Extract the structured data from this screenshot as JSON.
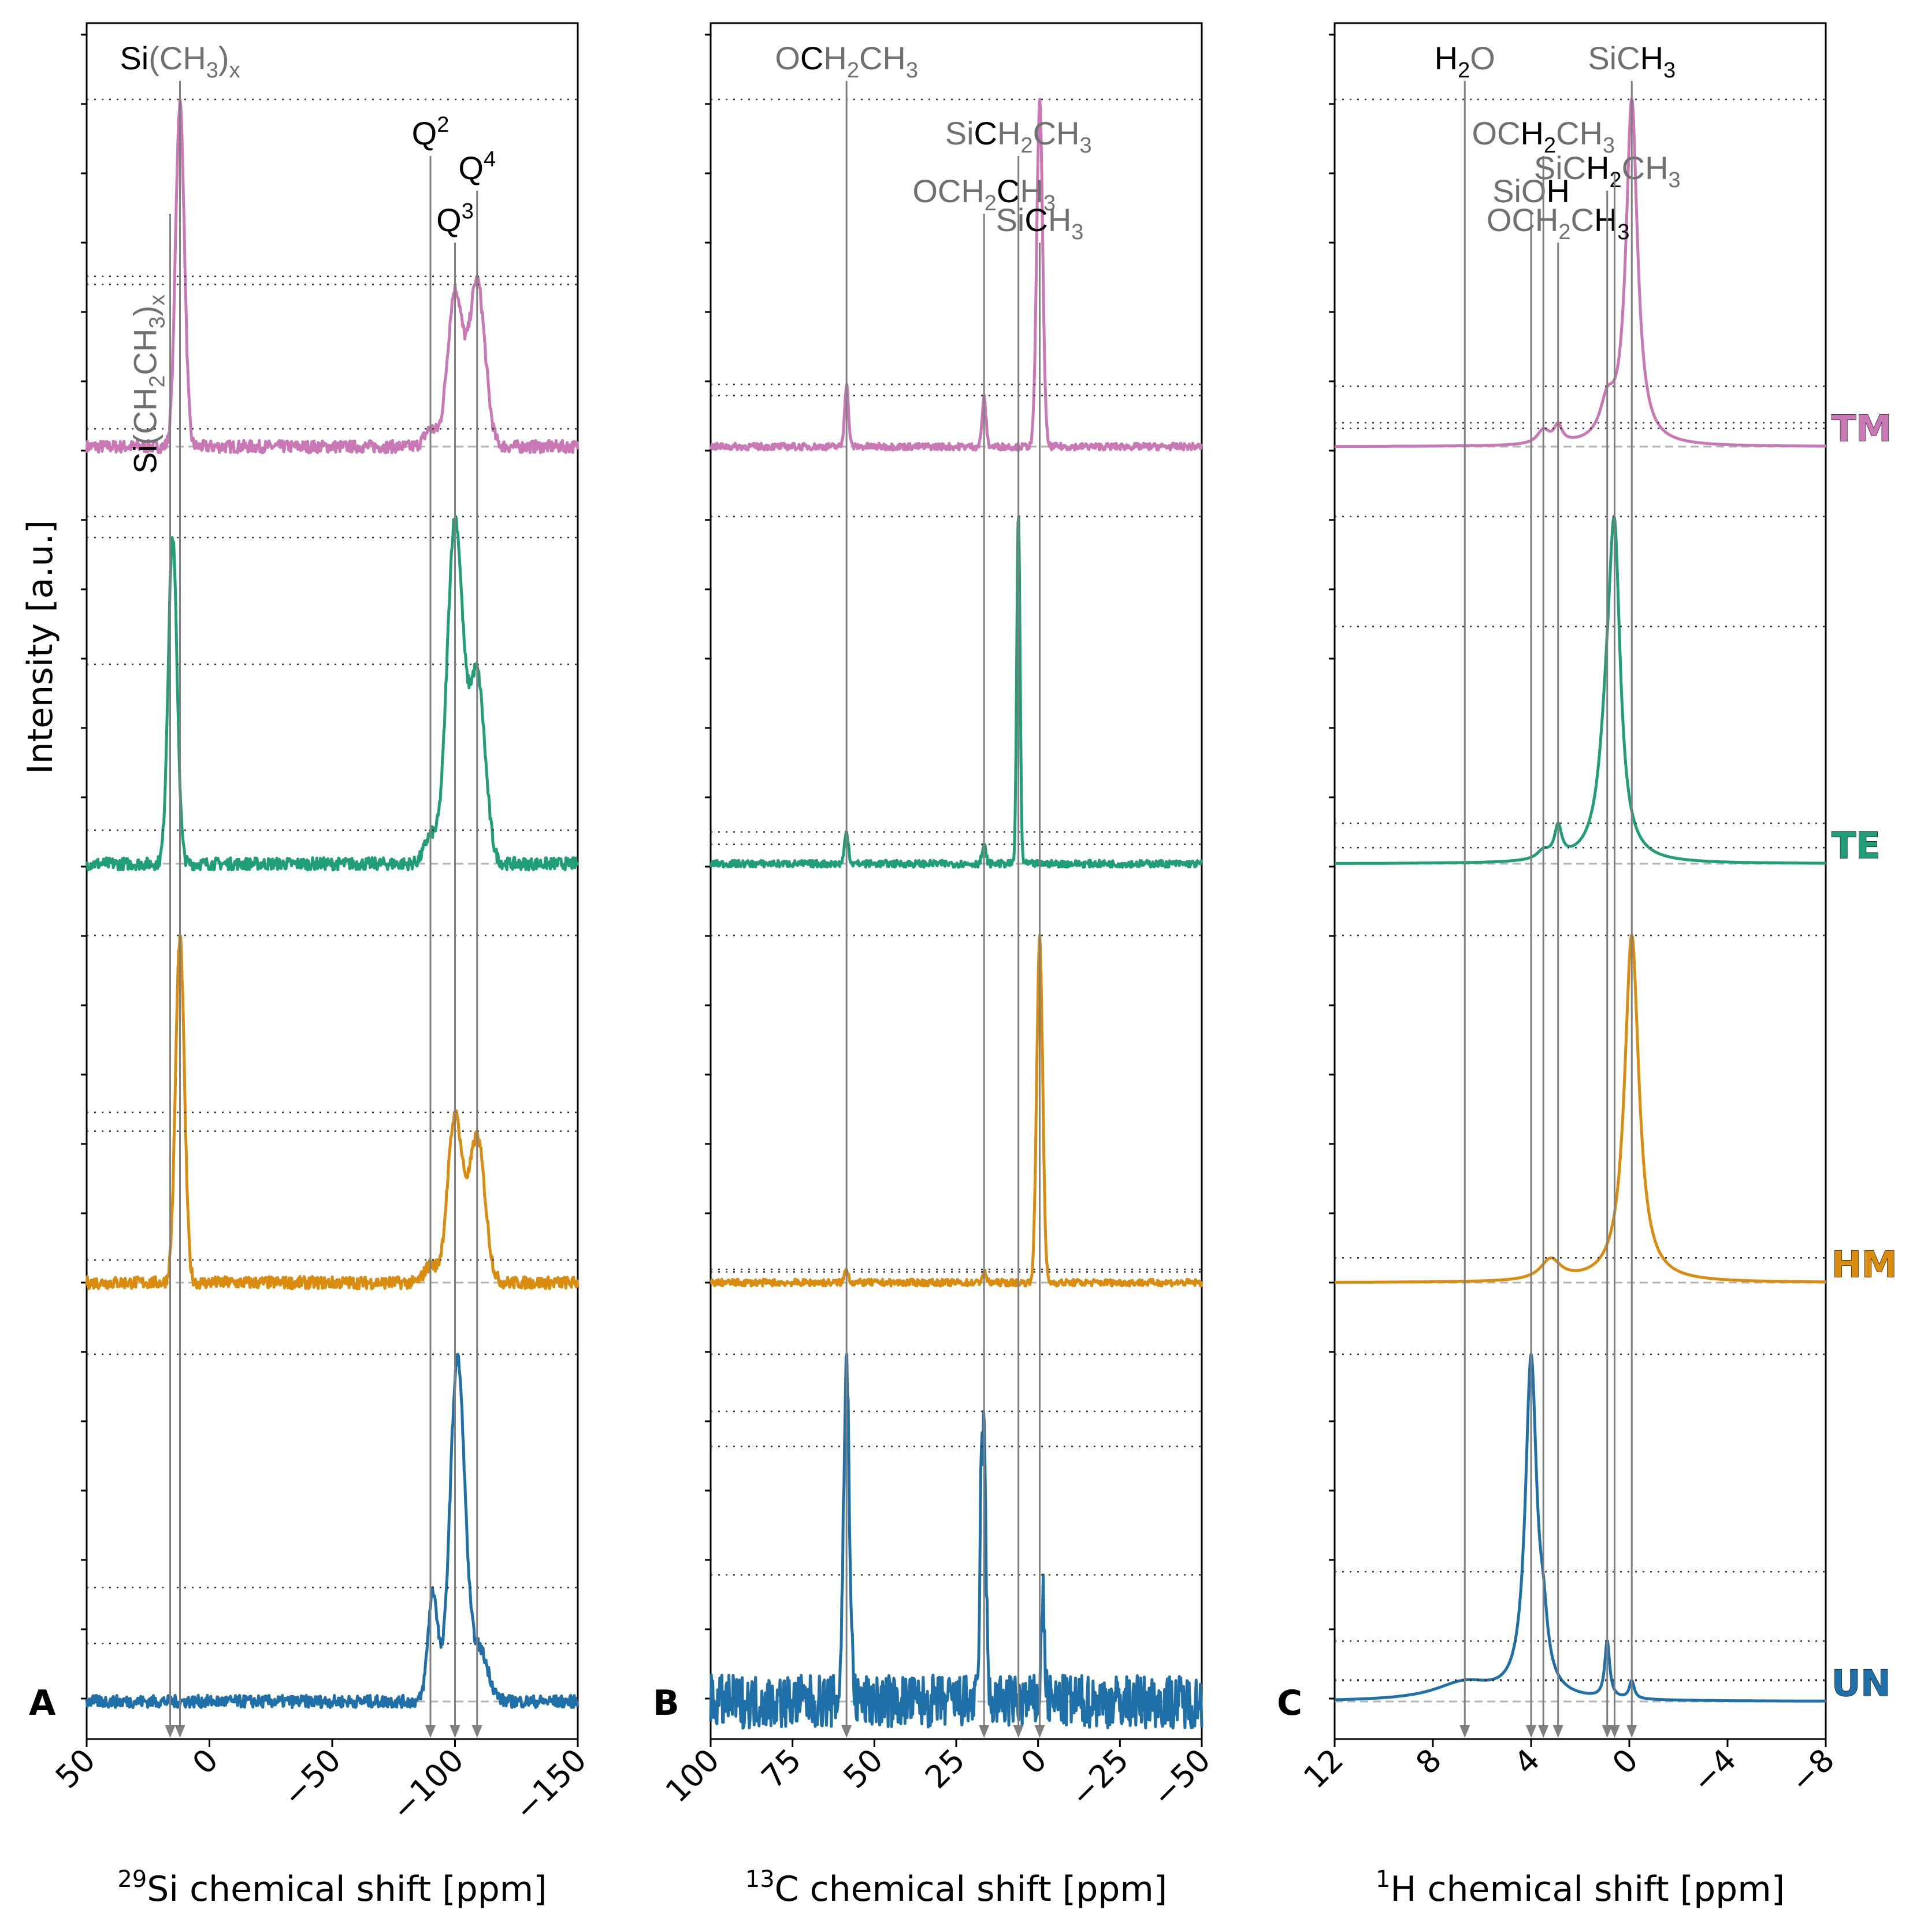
{
  "figure": {
    "ylabel": "Intensity [a.u.]",
    "series_colors": {
      "TM": "#c978b5",
      "TE": "#1f9e77",
      "HM": "#d98c0d",
      "UN": "#1f6fa8"
    },
    "series_order": [
      "TM",
      "TE",
      "HM",
      "UN"
    ]
  },
  "chart_data": [
    {
      "type": "line",
      "panel": "A",
      "nucleus": "29Si",
      "xlabel_sup": "29",
      "xlabel_rest": "Si chemical shift [ppm]",
      "xlim": [
        50,
        -150
      ],
      "xticks": [
        50,
        0,
        -50,
        -100,
        -150
      ],
      "xtick_labels": [
        "50",
        "0",
        "−50",
        "−100",
        "−150"
      ],
      "noise": 0.018,
      "markers": [
        {
          "x": 12,
          "parts": [
            [
              "Si",
              "b"
            ],
            [
              "(CH",
              "g"
            ],
            [
              "3",
              "gsub"
            ],
            [
              ")",
              "g"
            ],
            [
              "x",
              "gsub"
            ]
          ]
        },
        {
          "x": 16,
          "rotated": true,
          "parts": [
            [
              "Si",
              "b"
            ],
            [
              "(CH",
              "g"
            ],
            [
              "2",
              "gsub"
            ],
            [
              "CH",
              "g"
            ],
            [
              "3",
              "gsub"
            ],
            [
              ")",
              "g"
            ],
            [
              "x",
              "gsub"
            ]
          ]
        },
        {
          "x": -90,
          "parts": [
            [
              "Q",
              "b"
            ],
            [
              "2",
              "bsup"
            ]
          ]
        },
        {
          "x": -100,
          "parts": [
            [
              "Q",
              "b"
            ],
            [
              "3",
              "bsup"
            ]
          ]
        },
        {
          "x": -109,
          "parts": [
            [
              "Q",
              "b"
            ],
            [
              "4",
              "bsup"
            ]
          ]
        }
      ],
      "series": [
        {
          "name": "TM",
          "color": "#c978b5",
          "peaks": [
            [
              12,
              1.0,
              1.8
            ],
            [
              -90,
              0.05,
              2.5
            ],
            [
              -100,
              0.45,
              3.0
            ],
            [
              -109,
              0.48,
              3.2
            ]
          ]
        },
        {
          "name": "TE",
          "color": "#1f9e77",
          "peaks": [
            [
              15,
              0.95,
              1.8
            ],
            [
              -90,
              0.08,
              2.5
            ],
            [
              -100,
              1.0,
              3.2
            ],
            [
              -109,
              0.55,
              3.2
            ]
          ]
        },
        {
          "name": "HM",
          "color": "#d98c0d",
          "peaks": [
            [
              12,
              1.0,
              1.8
            ],
            [
              -90,
              0.05,
              2.5
            ],
            [
              -100,
              0.48,
              3.0
            ],
            [
              -109,
              0.42,
              3.2
            ]
          ]
        },
        {
          "name": "UN",
          "color": "#1f6fa8",
          "peaks": [
            [
              -91,
              0.32,
              2.0
            ],
            [
              -101,
              1.0,
              3.0
            ],
            [
              -110,
              0.15,
              3.5
            ]
          ]
        }
      ]
    },
    {
      "type": "line",
      "panel": "B",
      "nucleus": "13C",
      "xlabel_sup": "13",
      "xlabel_rest": "C chemical shift [ppm]",
      "xlim": [
        100,
        -50
      ],
      "xticks": [
        100,
        75,
        50,
        25,
        0,
        -25,
        -50
      ],
      "xtick_labels": [
        "100",
        "75",
        "50",
        "25",
        "0",
        "−25",
        "−50"
      ],
      "noise": 0.01,
      "markers": [
        {
          "x": 58.5,
          "parts": [
            [
              "O",
              "g"
            ],
            [
              "C",
              "b"
            ],
            [
              "H",
              "g"
            ],
            [
              "2",
              "gsub"
            ],
            [
              "CH",
              "g"
            ],
            [
              "3",
              "gsub"
            ]
          ]
        },
        {
          "x": 16.5,
          "parts": [
            [
              "OCH",
              "g"
            ],
            [
              "2",
              "gsub"
            ],
            [
              "C",
              "b"
            ],
            [
              "H",
              "g"
            ],
            [
              "3",
              "gsub"
            ]
          ]
        },
        {
          "x": 6,
          "parts": [
            [
              "Si",
              "g"
            ],
            [
              "C",
              "b"
            ],
            [
              "H",
              "g"
            ],
            [
              "2",
              "gsub"
            ],
            [
              "CH",
              "g"
            ],
            [
              "3",
              "gsub"
            ]
          ]
        },
        {
          "x": -0.5,
          "parts": [
            [
              "Si",
              "g"
            ],
            [
              "C",
              "b"
            ],
            [
              "H",
              "g"
            ],
            [
              "3",
              "gsub"
            ]
          ]
        }
      ],
      "series": [
        {
          "name": "TM",
          "color": "#c978b5",
          "peaks": [
            [
              58.5,
              0.18,
              0.6
            ],
            [
              16.5,
              0.14,
              0.6
            ],
            [
              -0.5,
              1.0,
              0.9
            ]
          ]
        },
        {
          "name": "TE",
          "color": "#1f9e77",
          "peaks": [
            [
              58.5,
              0.09,
              0.6
            ],
            [
              16.5,
              0.05,
              0.6
            ],
            [
              6,
              1.0,
              0.5
            ]
          ]
        },
        {
          "name": "HM",
          "color": "#d98c0d",
          "peaks": [
            [
              58.5,
              0.04,
              0.6
            ],
            [
              16.5,
              0.03,
              0.6
            ],
            [
              -0.5,
              1.0,
              0.9
            ]
          ]
        },
        {
          "name": "UN",
          "color": "#1f6fa8",
          "peaks": [
            [
              58.5,
              1.0,
              0.9
            ],
            [
              16.5,
              0.78,
              0.6
            ],
            [
              17.5,
              0.45,
              0.4
            ],
            [
              -1.5,
              0.32,
              0.5
            ]
          ],
          "noise": 0.08
        }
      ]
    },
    {
      "type": "line",
      "panel": "C",
      "nucleus": "1H",
      "xlabel_sup": "1",
      "xlabel_rest": "H chemical shift [ppm]",
      "xlim": [
        12,
        -8
      ],
      "xticks": [
        12,
        8,
        4,
        0,
        -4,
        -8
      ],
      "xtick_labels": [
        "12",
        "8",
        "4",
        "0",
        "−4",
        "−8"
      ],
      "noise": 0.0,
      "markers": [
        {
          "x": 6.7,
          "parts": [
            [
              "H",
              "b"
            ],
            [
              "2",
              "bsub"
            ],
            [
              "O",
              "g"
            ]
          ]
        },
        {
          "x": 4.0,
          "parts": [
            [
              "SiO",
              "g"
            ],
            [
              "H",
              "b"
            ]
          ]
        },
        {
          "x": 3.5,
          "parts": [
            [
              "OC",
              "g"
            ],
            [
              "H",
              "b"
            ],
            [
              "2",
              "bsub"
            ],
            [
              "CH",
              "g"
            ],
            [
              "3",
              "gsub"
            ]
          ]
        },
        {
          "x": 2.9,
          "parts": [
            [
              "OCH",
              "g"
            ],
            [
              "2",
              "gsub"
            ],
            [
              "C",
              "g"
            ],
            [
              "H",
              "b"
            ],
            [
              "3",
              "bsub"
            ]
          ]
        },
        {
          "x": 0.9,
          "parts": [
            [
              "SiC",
              "g"
            ],
            [
              "H",
              "b"
            ],
            [
              "2",
              "bsub"
            ],
            [
              "CH",
              "g"
            ],
            [
              "3",
              "gsub"
            ]
          ]
        },
        {
          "x": 0.6,
          "parts": []
        },
        {
          "x": -0.1,
          "parts": [
            [
              "SiC",
              "g"
            ],
            [
              "H",
              "b"
            ],
            [
              "3",
              "bsub"
            ]
          ]
        }
      ],
      "series": [
        {
          "name": "TM",
          "color": "#c978b5",
          "lorentz": [
            [
              -0.1,
              1.0,
              0.28
            ],
            [
              0.9,
              0.1,
              0.35
            ],
            [
              3.5,
              0.04,
              0.3
            ],
            [
              2.9,
              0.05,
              0.2
            ]
          ]
        },
        {
          "name": "TE",
          "color": "#1f9e77",
          "lorentz": [
            [
              0.6,
              1.0,
              0.28
            ],
            [
              0.9,
              0.35,
              0.4
            ],
            [
              3.5,
              0.03,
              0.3
            ],
            [
              2.9,
              0.11,
              0.18
            ]
          ]
        },
        {
          "name": "HM",
          "color": "#d98c0d",
          "lorentz": [
            [
              -0.1,
              1.0,
              0.35
            ],
            [
              3.2,
              0.06,
              0.5
            ]
          ]
        },
        {
          "name": "UN",
          "color": "#1f6fa8",
          "lorentz": [
            [
              4.0,
              0.95,
              0.28
            ],
            [
              6.7,
              0.05,
              1.5
            ],
            [
              3.5,
              0.12,
              0.2
            ],
            [
              0.9,
              0.16,
              0.12
            ],
            [
              -0.1,
              0.05,
              0.12
            ]
          ]
        }
      ]
    }
  ]
}
